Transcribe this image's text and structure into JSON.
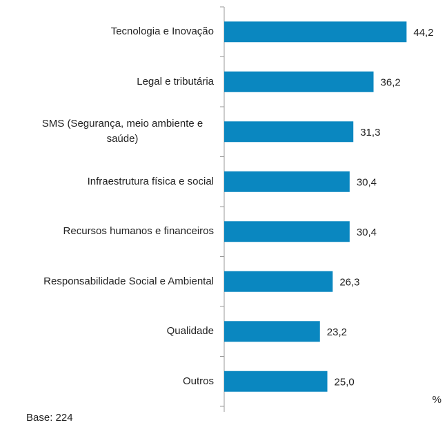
{
  "chart_data": {
    "type": "bar",
    "orientation": "horizontal",
    "categories": [
      "Tecnologia e Inovação",
      "Legal e tributária",
      "SMS (Segurança, meio ambiente e saúde)",
      "Infraestrutura física e social",
      "Recursos humanos e financeiros",
      "Responsabilidade Social e Ambiental",
      "Qualidade",
      "Outros"
    ],
    "values": [
      44.2,
      36.2,
      31.3,
      30.4,
      30.4,
      26.3,
      23.2,
      25.0
    ],
    "value_labels": [
      "44,2",
      "36,2",
      "31,3",
      "30,4",
      "30,4",
      "26,3",
      "23,2",
      "25,0"
    ],
    "color": "#0a87c0",
    "xlim": [
      0,
      54
    ],
    "unit_label": "%",
    "note": "Base: 224"
  }
}
